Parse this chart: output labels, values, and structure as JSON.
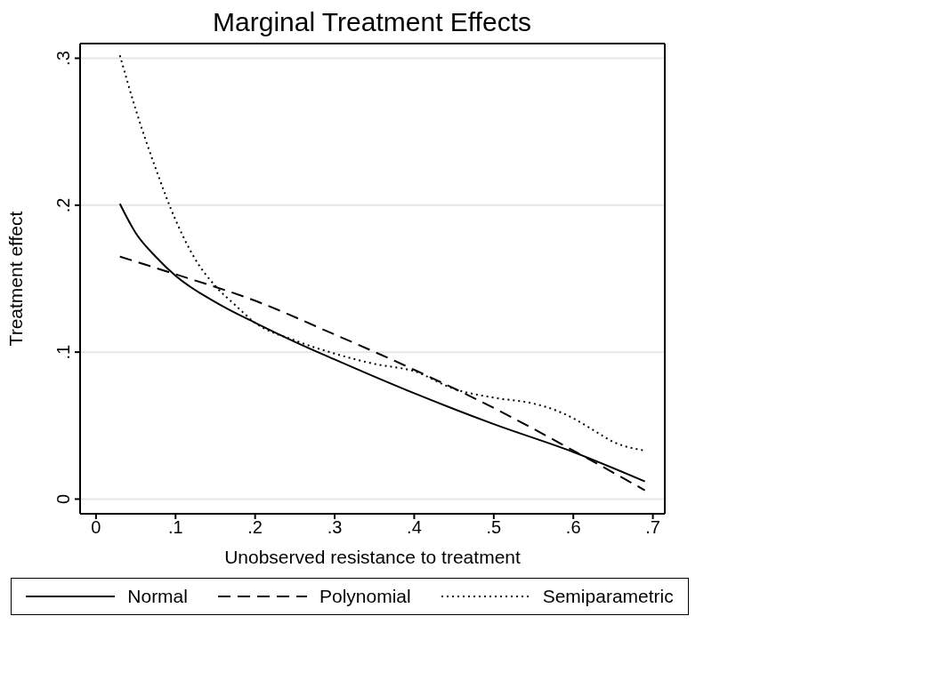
{
  "chart_data": {
    "type": "line",
    "title": "Marginal Treatment Effects",
    "xlabel": "Unobserved resistance to treatment",
    "ylabel": "Treatment effect",
    "xlim": [
      -0.02,
      0.715
    ],
    "ylim": [
      -0.01,
      0.31
    ],
    "xticks": [
      0,
      {
        "value": 0.1,
        "label": ".1"
      },
      {
        "value": 0.2,
        "label": ".2"
      },
      {
        "value": 0.3,
        "label": ".3"
      },
      {
        "value": 0.4,
        "label": ".4"
      },
      {
        "value": 0.5,
        "label": ".5"
      },
      {
        "value": 0.6,
        "label": ".6"
      },
      {
        "value": 0.7,
        "label": ".7"
      }
    ],
    "yticks": [
      0,
      {
        "value": 0.1,
        "label": ".1"
      },
      {
        "value": 0.2,
        "label": ".2"
      },
      {
        "value": 0.3,
        "label": ".3"
      }
    ],
    "grid": "y",
    "legend": "bottom",
    "marker": "none",
    "series": [
      {
        "name": "Normal",
        "color": "#000000",
        "line_style": "solid",
        "x": [
          0.03,
          0.05,
          0.075,
          0.1,
          0.15,
          0.2,
          0.25,
          0.3,
          0.4,
          0.5,
          0.6,
          0.69
        ],
        "values": [
          0.201,
          0.181,
          0.165,
          0.152,
          0.134,
          0.12,
          0.107,
          0.095,
          0.072,
          0.051,
          0.032,
          0.012
        ]
      },
      {
        "name": "Polynomial",
        "color": "#000000",
        "line_style": "dashed",
        "x": [
          0.03,
          0.1,
          0.2,
          0.3,
          0.4,
          0.5,
          0.6,
          0.69
        ],
        "values": [
          0.165,
          0.153,
          0.135,
          0.112,
          0.088,
          0.062,
          0.033,
          0.006
        ]
      },
      {
        "name": "Semiparametric",
        "color": "#000000",
        "line_style": "dotted",
        "x": [
          0.03,
          0.05,
          0.075,
          0.1,
          0.125,
          0.15,
          0.175,
          0.2,
          0.25,
          0.3,
          0.35,
          0.4,
          0.45,
          0.5,
          0.55,
          0.575,
          0.6,
          0.625,
          0.65,
          0.69
        ],
        "values": [
          0.302,
          0.265,
          0.225,
          0.19,
          0.163,
          0.145,
          0.132,
          0.12,
          0.108,
          0.099,
          0.092,
          0.087,
          0.075,
          0.069,
          0.065,
          0.061,
          0.055,
          0.047,
          0.039,
          0.033
        ]
      }
    ]
  }
}
